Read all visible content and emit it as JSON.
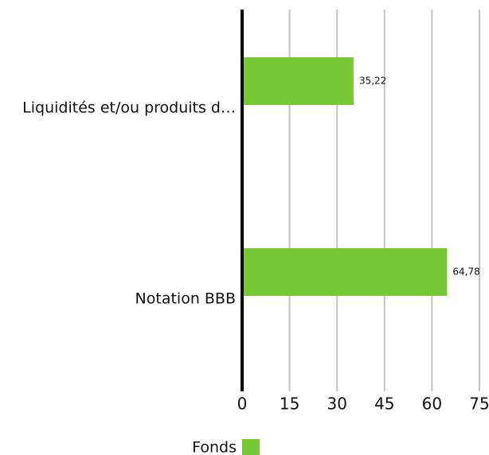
{
  "chart_data": {
    "type": "hbar",
    "categories": [
      "Liquidités et/ou produits d…",
      "Notation BBB"
    ],
    "series": [
      {
        "name": "Fonds",
        "color": "#76c934",
        "values": [
          35.22,
          64.78
        ],
        "value_labels": [
          "35,22",
          "64,78"
        ]
      }
    ],
    "xlim": [
      0,
      75
    ],
    "xticks": [
      0,
      15,
      30,
      45,
      60,
      75
    ],
    "grid": true,
    "legend": "bottom"
  }
}
